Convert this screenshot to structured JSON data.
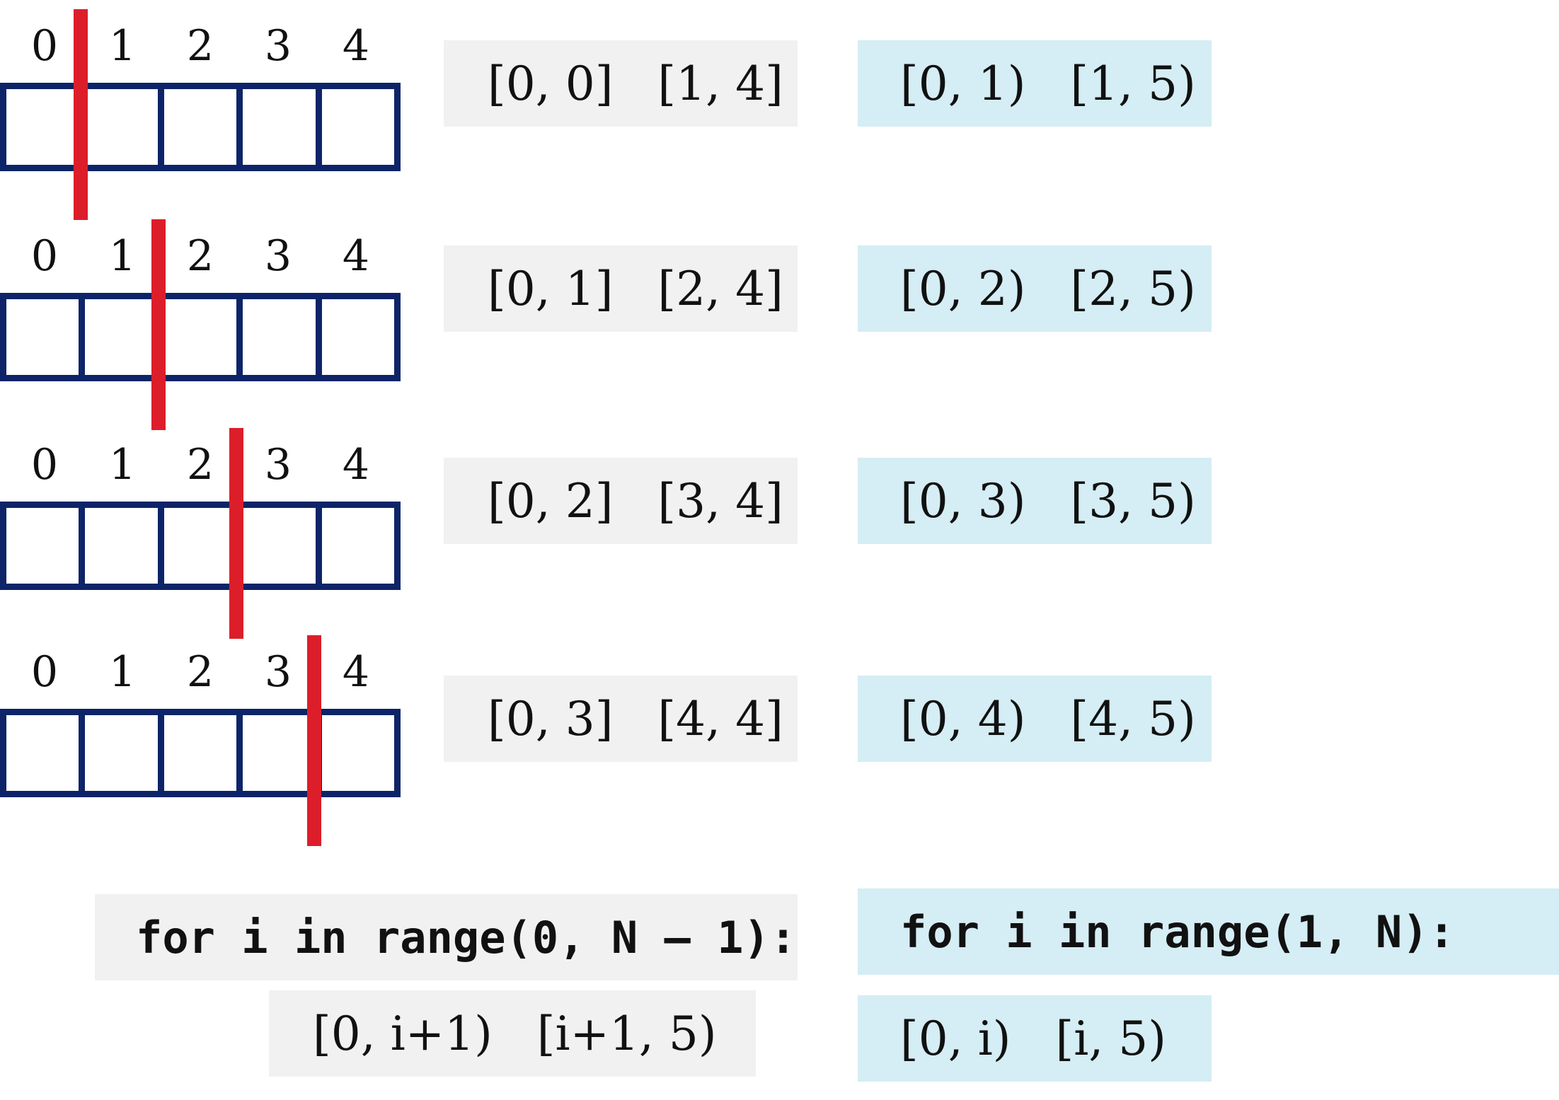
{
  "indices": [
    "0",
    "1",
    "2",
    "3",
    "4"
  ],
  "splits": [
    {
      "split_after": 0,
      "closed": "[0, 0]   [1, 4]",
      "half_open": "[0, 1)   [1, 5)"
    },
    {
      "split_after": 1,
      "closed": "[0, 1]   [2, 4]",
      "half_open": "[0, 2)   [2, 5)"
    },
    {
      "split_after": 2,
      "closed": "[0, 2]   [3, 4]",
      "half_open": "[0, 3)   [3, 5)"
    },
    {
      "split_after": 3,
      "closed": "[0, 3]   [4, 4]",
      "half_open": "[0, 4)   [4, 5)"
    }
  ],
  "loops": {
    "closed_loop": "for i in range(0, N – 1):",
    "closed_expr": "[0, i+1)   [i+1, 5)",
    "half_open_loop": "for i in range(1, N):",
    "half_open_expr": "[0, i)   [i, 5)"
  },
  "colors": {
    "array_border": "#0d2468",
    "divider": "#dc1e2a",
    "closed_bg": "#f1f1f1",
    "half_open_bg": "#d5edf4"
  }
}
